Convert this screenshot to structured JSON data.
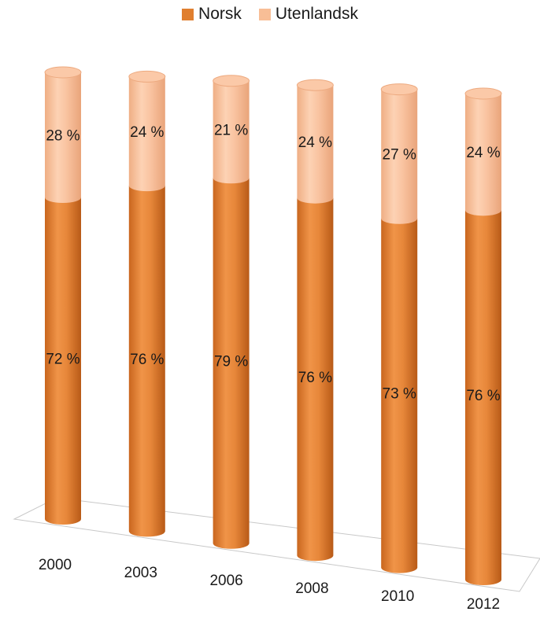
{
  "chart_data": {
    "type": "bar",
    "stacked": true,
    "percent": true,
    "categories": [
      "2000",
      "2003",
      "2006",
      "2008",
      "2010",
      "2012"
    ],
    "series": [
      {
        "name": "Norsk",
        "values": [
          72,
          76,
          79,
          76,
          73,
          76
        ],
        "labels": [
          "72 %",
          "76 %",
          "79 %",
          "76 %",
          "73 %",
          "76 %"
        ],
        "color": "#E07F2F"
      },
      {
        "name": "Utenlandsk",
        "values": [
          28,
          24,
          21,
          24,
          27,
          24
        ],
        "labels": [
          "28 %",
          "24 %",
          "21 %",
          "24 %",
          "27 %",
          "24 %"
        ],
        "color": "#F8BE96"
      }
    ],
    "ylim": [
      0,
      100
    ],
    "grid": false,
    "legend": "top-center"
  }
}
